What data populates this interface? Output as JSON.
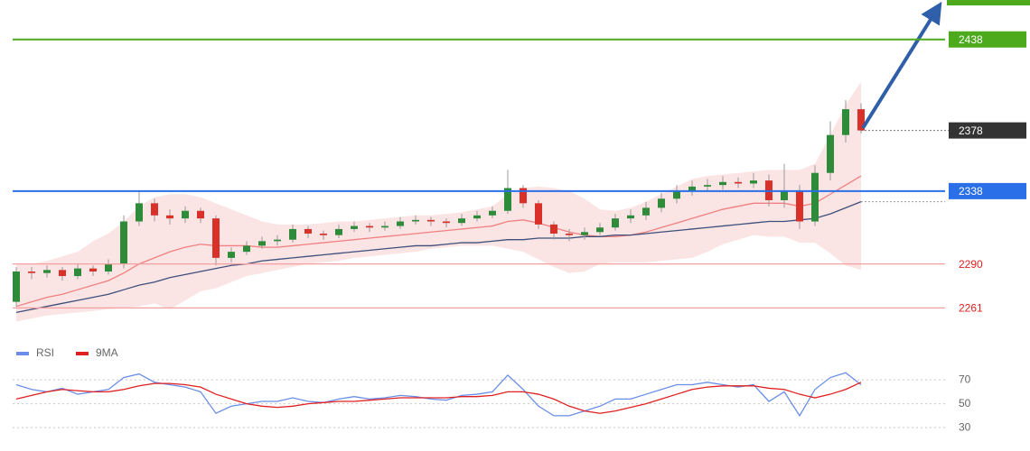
{
  "chart_data": [
    {
      "type": "candlestick",
      "open": [
        2265,
        2285,
        2284,
        2286,
        2282,
        2287,
        2285,
        2290,
        2318,
        2330,
        2322,
        2320,
        2325,
        2320,
        2294,
        2298,
        2302,
        2305,
        2306,
        2313,
        2310,
        2309,
        2313,
        2315,
        2314,
        2315,
        2318,
        2319,
        2318,
        2317,
        2320,
        2322,
        2325,
        2340,
        2330,
        2316,
        2310,
        2309,
        2311,
        2314,
        2320,
        2322,
        2327,
        2333,
        2338,
        2341,
        2342,
        2344,
        2343,
        2345,
        2332,
        2338,
        2318,
        2350,
        2375,
        2392
      ],
      "high": [
        2288,
        2288,
        2289,
        2288,
        2290,
        2289,
        2293,
        2322,
        2338,
        2333,
        2326,
        2328,
        2327,
        2322,
        2301,
        2305,
        2308,
        2309,
        2316,
        2315,
        2312,
        2316,
        2318,
        2317,
        2318,
        2321,
        2322,
        2321,
        2320,
        2323,
        2325,
        2328,
        2352,
        2342,
        2332,
        2318,
        2313,
        2314,
        2317,
        2323,
        2326,
        2331,
        2337,
        2342,
        2345,
        2346,
        2348,
        2347,
        2350,
        2349,
        2356,
        2342,
        2355,
        2384,
        2398,
        2396
      ],
      "low": [
        2262,
        2280,
        2281,
        2279,
        2280,
        2282,
        2283,
        2287,
        2315,
        2318,
        2316,
        2317,
        2317,
        2289,
        2291,
        2296,
        2300,
        2302,
        2304,
        2307,
        2306,
        2307,
        2311,
        2311,
        2312,
        2313,
        2316,
        2315,
        2314,
        2315,
        2318,
        2320,
        2323,
        2327,
        2313,
        2306,
        2305,
        2306,
        2309,
        2312,
        2317,
        2319,
        2324,
        2330,
        2335,
        2338,
        2339,
        2340,
        2340,
        2328,
        2327,
        2313,
        2315,
        2345,
        2370,
        2376
      ],
      "close": [
        2285,
        2284,
        2286,
        2282,
        2287,
        2285,
        2290,
        2318,
        2330,
        2322,
        2320,
        2325,
        2320,
        2294,
        2298,
        2302,
        2305,
        2306,
        2313,
        2310,
        2309,
        2313,
        2315,
        2314,
        2315,
        2318,
        2319,
        2318,
        2317,
        2320,
        2322,
        2325,
        2340,
        2330,
        2316,
        2310,
        2309,
        2311,
        2314,
        2320,
        2322,
        2327,
        2333,
        2338,
        2341,
        2342,
        2344,
        2343,
        2345,
        2332,
        2338,
        2318,
        2350,
        2375,
        2392,
        2378
      ],
      "up_color": "#2e8b3a",
      "down_color": "#d9302a",
      "band": {
        "color": "#f9d2d2",
        "upper": [
          2290,
          2290,
          2292,
          2295,
          2298,
          2305,
          2310,
          2318,
          2328,
          2334,
          2336,
          2336,
          2334,
          2330,
          2326,
          2322,
          2318,
          2316,
          2316,
          2316,
          2317,
          2318,
          2318,
          2319,
          2320,
          2321,
          2322,
          2322,
          2323,
          2324,
          2326,
          2328,
          2336,
          2340,
          2341,
          2340,
          2338,
          2333,
          2326,
          2325,
          2327,
          2331,
          2336,
          2341,
          2346,
          2348,
          2349,
          2350,
          2351,
          2352,
          2352,
          2352,
          2356,
          2375,
          2395,
          2410
        ],
        "lower": [
          2252,
          2254,
          2256,
          2257,
          2258,
          2259,
          2260,
          2261,
          2262,
          2264,
          2260,
          2266,
          2272,
          2274,
          2278,
          2282,
          2284,
          2286,
          2288,
          2290,
          2291,
          2292,
          2294,
          2295,
          2296,
          2297,
          2298,
          2300,
          2301,
          2302,
          2302,
          2302,
          2300,
          2298,
          2293,
          2288,
          2284,
          2285,
          2290,
          2291,
          2291,
          2291,
          2292,
          2293,
          2294,
          2298,
          2303,
          2306,
          2309,
          2308,
          2308,
          2304,
          2304,
          2297,
          2289,
          2286
        ]
      },
      "lines": [
        {
          "color": "#f08080",
          "values": [
            2262,
            2265,
            2268,
            2270,
            2273,
            2276,
            2279,
            2284,
            2290,
            2294,
            2298,
            2301,
            2303,
            2302,
            2302,
            2302,
            2301,
            2301,
            2302,
            2303,
            2304,
            2305,
            2306,
            2307,
            2308,
            2309,
            2310,
            2311,
            2312,
            2313,
            2314,
            2315,
            2318,
            2319,
            2317,
            2314,
            2311,
            2309,
            2308,
            2308,
            2309,
            2311,
            2314,
            2317,
            2320,
            2323,
            2326,
            2328,
            2330,
            2330,
            2330,
            2328,
            2330,
            2336,
            2342,
            2348
          ]
        },
        {
          "color": "#3d4f7a",
          "values": [
            2258,
            2260,
            2262,
            2264,
            2266,
            2268,
            2270,
            2273,
            2276,
            2278,
            2281,
            2283,
            2285,
            2287,
            2289,
            2290,
            2292,
            2293,
            2294,
            2295,
            2296,
            2297,
            2298,
            2299,
            2300,
            2301,
            2302,
            2302,
            2303,
            2304,
            2304,
            2305,
            2306,
            2306,
            2307,
            2307,
            2307,
            2308,
            2308,
            2309,
            2309,
            2310,
            2311,
            2312,
            2313,
            2314,
            2315,
            2316,
            2317,
            2318,
            2318,
            2319,
            2320,
            2323,
            2327,
            2331
          ]
        }
      ],
      "levels": [
        {
          "value": 2438,
          "color": "#4caa1c",
          "label": "box"
        },
        {
          "value": 2338,
          "color": "#2a6fe8",
          "label": "box"
        },
        {
          "value": 2290,
          "color": "#f4a0a0",
          "label": "text"
        },
        {
          "value": 2261,
          "color": "#f4a0a0",
          "label": "text"
        }
      ],
      "last_color": "#333333",
      "ylim": [
        2241,
        2464
      ]
    },
    {
      "type": "line",
      "series": [
        {
          "name": "RSI",
          "color": "#6a8ee8",
          "values": [
            66,
            62,
            60,
            63,
            58,
            60,
            62,
            72,
            75,
            68,
            66,
            64,
            60,
            42,
            48,
            50,
            52,
            52,
            55,
            52,
            51,
            54,
            56,
            54,
            55,
            57,
            56,
            54,
            53,
            57,
            58,
            60,
            74,
            62,
            48,
            40,
            40,
            44,
            48,
            54,
            54,
            58,
            62,
            66,
            66,
            68,
            66,
            64,
            66,
            52,
            60,
            40,
            62,
            72,
            76,
            66
          ]
        },
        {
          "name": "9MA",
          "color": "#e02020",
          "values": [
            54,
            57,
            60,
            62,
            61,
            60,
            60,
            62,
            65,
            67,
            67,
            66,
            64,
            58,
            54,
            50,
            48,
            47,
            48,
            50,
            51,
            52,
            52,
            53,
            54,
            55,
            55,
            55,
            55,
            56,
            56,
            57,
            60,
            60,
            58,
            54,
            48,
            44,
            42,
            44,
            47,
            50,
            54,
            58,
            62,
            64,
            65,
            65,
            65,
            63,
            62,
            58,
            55,
            58,
            62,
            68
          ]
        }
      ],
      "ylim": [
        18,
        86
      ],
      "yticks": [
        30,
        50,
        70
      ],
      "grid": true
    }
  ]
}
